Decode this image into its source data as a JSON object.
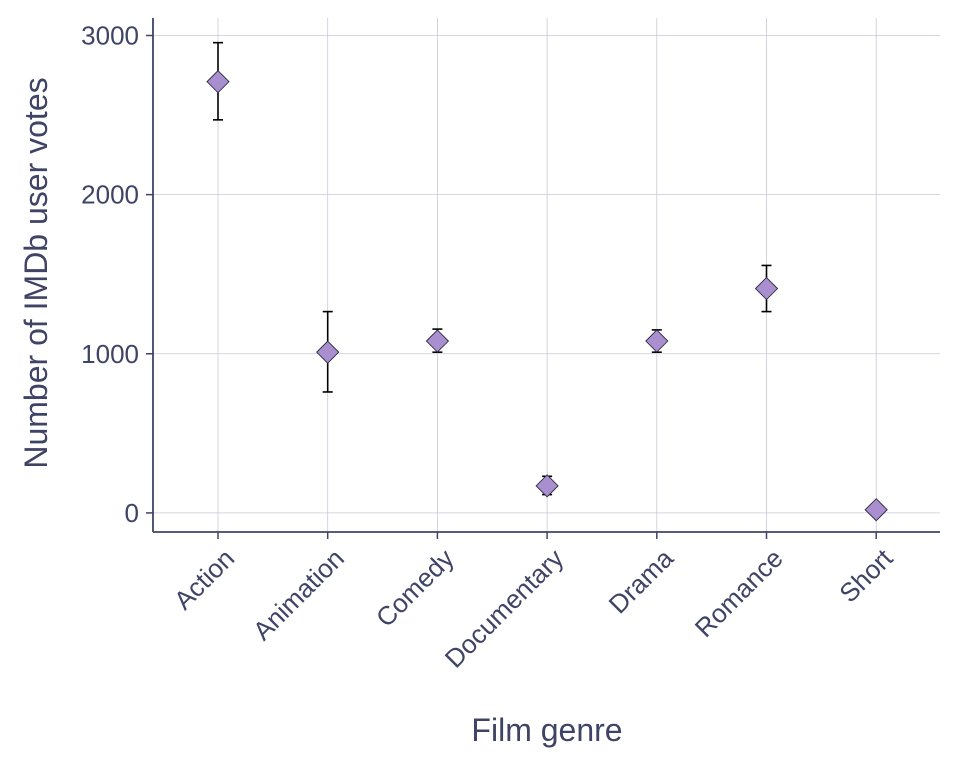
{
  "chart_data": {
    "type": "scatter",
    "title": "",
    "xlabel": "Film genre",
    "ylabel": "Number of IMDb user votes",
    "categories": [
      "Action",
      "Animation",
      "Comedy",
      "Documentary",
      "Drama",
      "Romance",
      "Short"
    ],
    "values": [
      2710,
      1010,
      1080,
      170,
      1080,
      1410,
      20
    ],
    "error_low": [
      2470,
      760,
      1010,
      115,
      1010,
      1265,
      5
    ],
    "error_high": [
      2955,
      1265,
      1155,
      230,
      1150,
      1555,
      35
    ],
    "ylim": [
      -120,
      3110
    ],
    "yticks": [
      0,
      1000,
      2000,
      3000
    ],
    "grid": true,
    "marker": "diamond",
    "colors": {
      "marker_fill": "#a98fcf",
      "marker_stroke": "#2a2a3a",
      "errorbar": "#000000",
      "axis": "#3f4466",
      "text": "#3f4466",
      "grid": "#c8c9d6"
    }
  }
}
